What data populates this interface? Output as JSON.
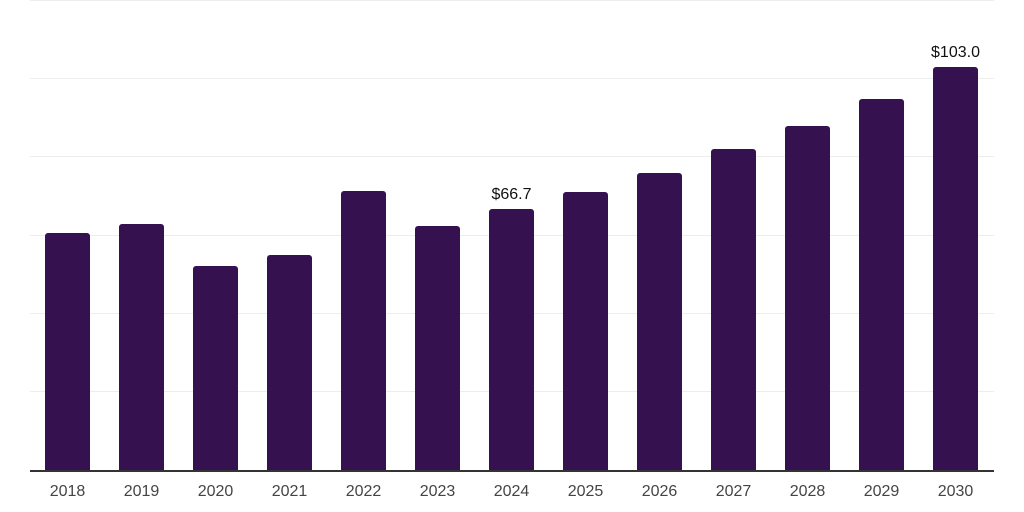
{
  "chart_data": {
    "type": "bar",
    "title": "",
    "xlabel": "",
    "ylabel": "",
    "categories": [
      "2018",
      "2019",
      "2020",
      "2021",
      "2022",
      "2023",
      "2024",
      "2025",
      "2026",
      "2027",
      "2028",
      "2029",
      "2030"
    ],
    "values": [
      60.7,
      63.0,
      52.3,
      55.1,
      71.4,
      62.5,
      66.7,
      71.2,
      76.0,
      82.1,
      88.0,
      94.9,
      103.0
    ],
    "data_labels": {
      "2024": "$66.7",
      "2030": "$103.0"
    },
    "ylim": [
      0,
      120
    ],
    "gridline_step": 20,
    "grid": "horizontal",
    "legend": "none",
    "colors": {
      "bar": "#351150",
      "gridline": "#ededed",
      "axis_line": "#333333",
      "tick_label": "#444444",
      "data_label": "#111111",
      "background": "#ffffff"
    }
  }
}
